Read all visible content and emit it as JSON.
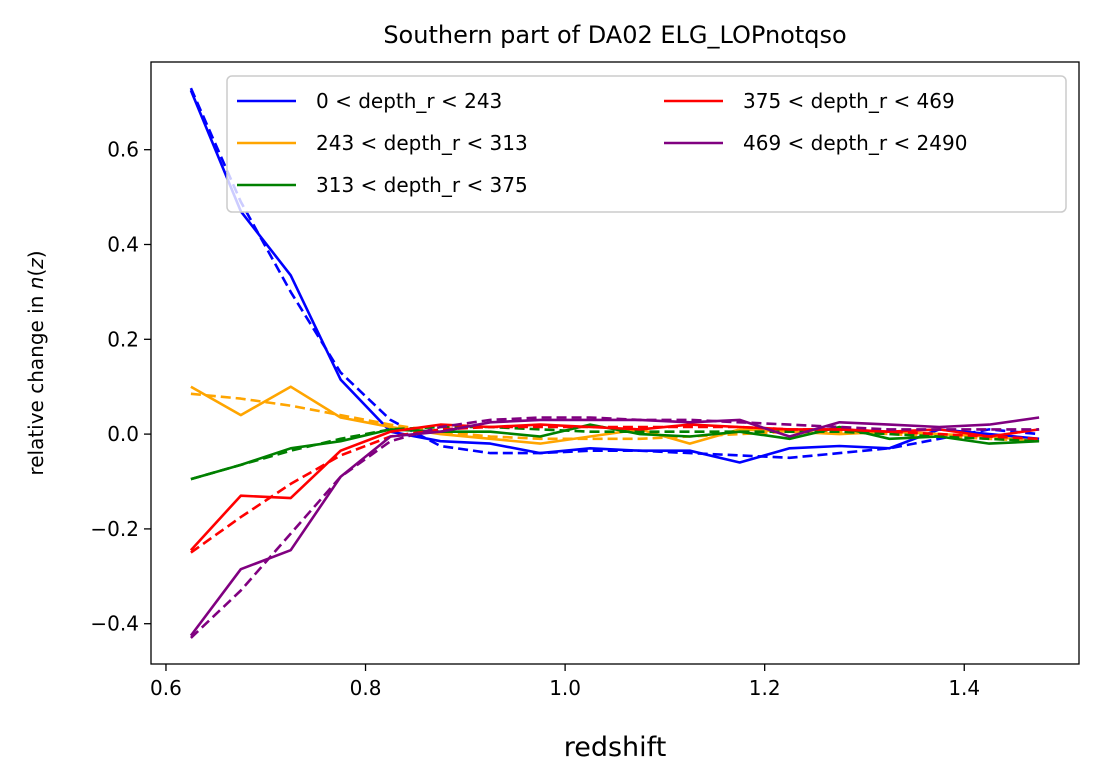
{
  "chart_data": {
    "type": "line",
    "title": "Southern part of DA02 ELG_LOPnotqso",
    "xlabel": "redshift",
    "ylabel": "relative change in n(z)",
    "xlim": [
      0.585,
      1.515
    ],
    "ylim": [
      -0.485,
      0.785
    ],
    "xticks": [
      0.6,
      0.8,
      1.0,
      1.2,
      1.4
    ],
    "xtick_labels": [
      "0.6",
      "0.8",
      "1.0",
      "1.2",
      "1.4"
    ],
    "yticks": [
      -0.4,
      -0.2,
      0.0,
      0.2,
      0.4,
      0.6
    ],
    "ytick_labels": [
      "−0.4",
      "−0.2",
      "0.0",
      "0.2",
      "0.4",
      "0.6"
    ],
    "grid": false,
    "legend_position": "top-right",
    "legend_columns": 2,
    "x": [
      0.625,
      0.675,
      0.725,
      0.775,
      0.825,
      0.875,
      0.925,
      0.975,
      1.025,
      1.075,
      1.125,
      1.175,
      1.225,
      1.275,
      1.325,
      1.375,
      1.425,
      1.475
    ],
    "series": [
      {
        "name": "0 < depth_r < 243",
        "color": "#0000ff",
        "values": [
          0.725,
          0.47,
          0.335,
          0.115,
          0.005,
          -0.015,
          -0.02,
          -0.04,
          -0.03,
          -0.035,
          -0.035,
          -0.06,
          -0.03,
          -0.025,
          -0.03,
          0.01,
          0.0,
          -0.01
        ],
        "fit": [
          0.73,
          0.49,
          0.3,
          0.13,
          0.03,
          -0.025,
          -0.04,
          -0.04,
          -0.035,
          -0.035,
          -0.04,
          -0.045,
          -0.05,
          -0.04,
          -0.03,
          -0.01,
          0.01,
          0.0
        ]
      },
      {
        "name": "243 < depth_r < 313",
        "color": "#ffa500",
        "values": [
          0.1,
          0.04,
          0.1,
          0.035,
          0.015,
          0.0,
          -0.01,
          -0.02,
          -0.005,
          0.01,
          -0.02,
          0.01,
          0.005,
          0.0,
          0.005,
          0.0,
          -0.005,
          -0.015
        ],
        "fit": [
          0.085,
          0.075,
          0.06,
          0.04,
          0.02,
          0.005,
          -0.005,
          -0.01,
          -0.01,
          -0.01,
          -0.005,
          0.0,
          0.005,
          0.005,
          0.0,
          -0.005,
          -0.01,
          -0.015
        ]
      },
      {
        "name": "313 < depth_r < 375",
        "color": "#008000",
        "values": [
          -0.095,
          -0.065,
          -0.03,
          -0.015,
          0.01,
          0.005,
          0.005,
          -0.005,
          0.02,
          0.0,
          -0.005,
          0.005,
          -0.01,
          0.015,
          -0.01,
          -0.005,
          -0.02,
          -0.015
        ],
        "fit": [
          -0.095,
          -0.065,
          -0.035,
          -0.01,
          0.01,
          0.015,
          0.015,
          0.01,
          0.005,
          0.005,
          0.005,
          0.005,
          0.005,
          0.005,
          0.0,
          -0.005,
          -0.01,
          -0.015
        ]
      },
      {
        "name": "375 < depth_r < 469",
        "color": "#ff0000",
        "values": [
          -0.245,
          -0.13,
          -0.135,
          -0.035,
          0.005,
          0.02,
          0.015,
          0.02,
          0.015,
          0.01,
          0.02,
          0.015,
          0.01,
          0.01,
          0.005,
          0.01,
          -0.005,
          0.01
        ],
        "fit": [
          -0.25,
          -0.175,
          -0.105,
          -0.045,
          -0.005,
          0.01,
          0.015,
          0.015,
          0.015,
          0.015,
          0.015,
          0.015,
          0.01,
          0.01,
          0.005,
          0.0,
          -0.005,
          -0.01
        ]
      },
      {
        "name": "469 < depth_r < 2490",
        "color": "#800080",
        "values": [
          -0.425,
          -0.285,
          -0.245,
          -0.09,
          -0.005,
          0.005,
          0.025,
          0.03,
          0.03,
          0.03,
          0.025,
          0.03,
          -0.005,
          0.025,
          0.02,
          0.015,
          0.02,
          0.035
        ],
        "fit": [
          -0.43,
          -0.33,
          -0.21,
          -0.09,
          -0.015,
          0.015,
          0.03,
          0.035,
          0.035,
          0.03,
          0.03,
          0.025,
          0.02,
          0.015,
          0.01,
          0.01,
          0.01,
          0.01
        ]
      }
    ]
  }
}
